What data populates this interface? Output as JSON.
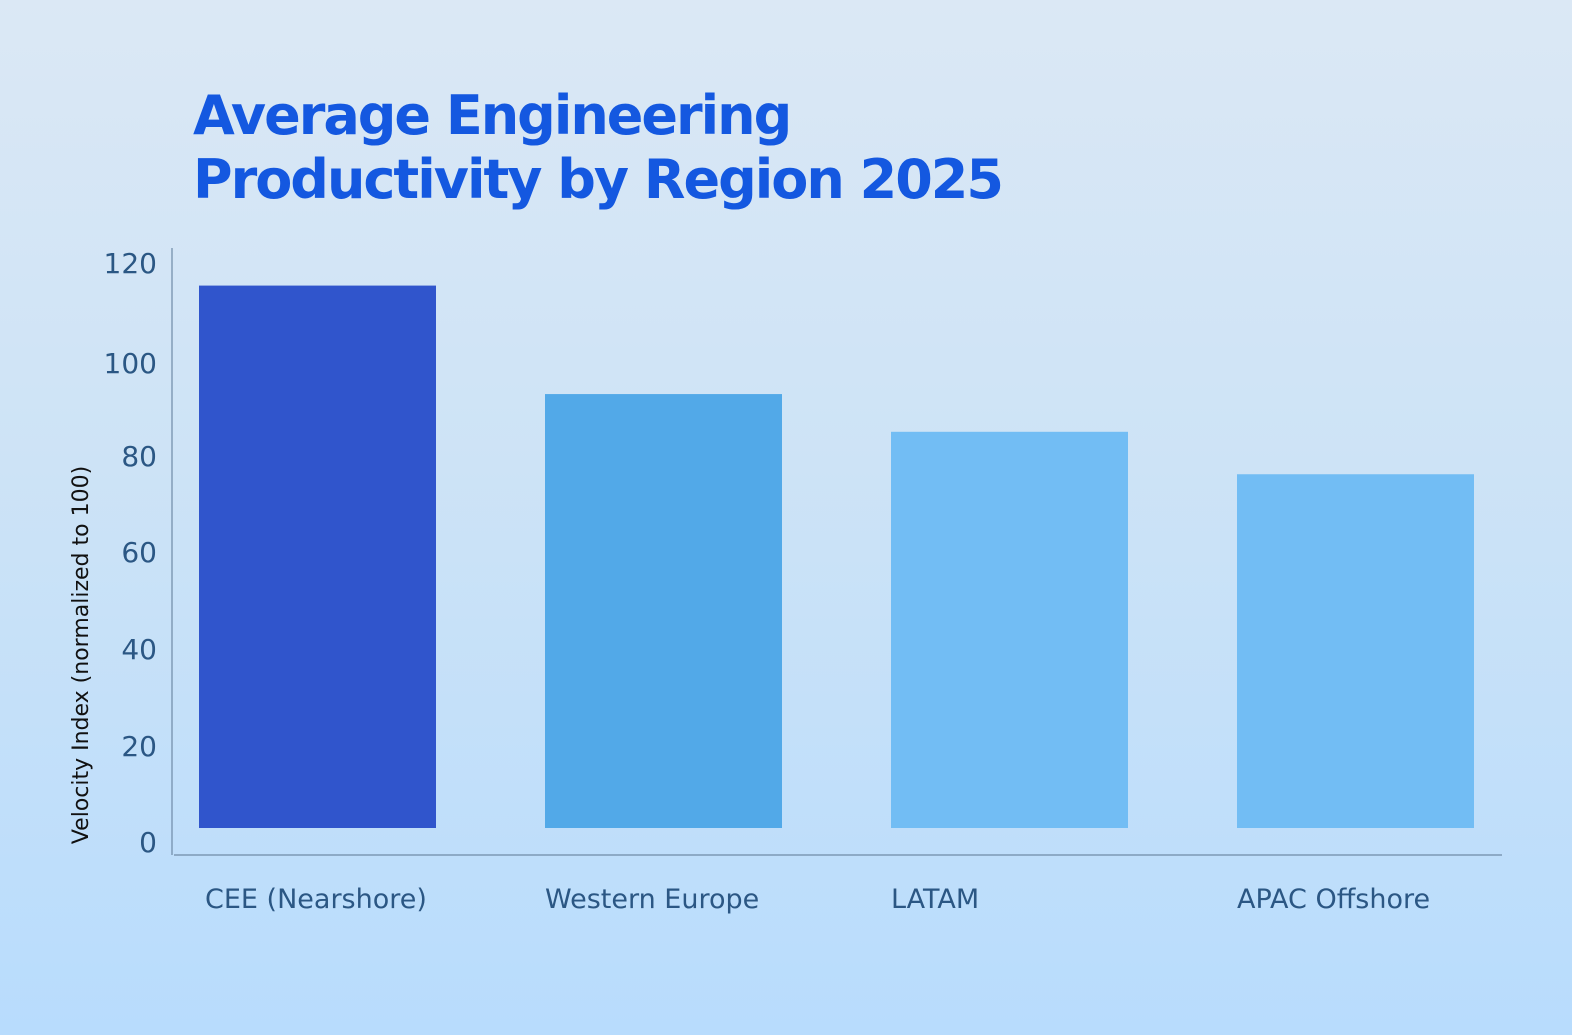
{
  "chart_data": {
    "type": "bar",
    "title_lines": [
      "Average Engineering",
      "Productivity by Region 2025"
    ],
    "title": "Average Engineering Productivity by Region 2025",
    "xlabel": "",
    "ylabel": "Velocity Index (normalized to 100)",
    "categories": [
      "CEE (Nearshore)",
      "Western Europe",
      "LATAM",
      "APAC Offshore"
    ],
    "values": [
      115,
      92,
      84,
      75
    ],
    "colors": [
      "#3055cc",
      "#52a9e8",
      "#72bdf4",
      "#72bdf4"
    ],
    "ylim": [
      0,
      120
    ],
    "yticks": [
      0,
      20,
      40,
      60,
      80,
      100,
      120
    ],
    "grid": false,
    "legend": "none"
  }
}
